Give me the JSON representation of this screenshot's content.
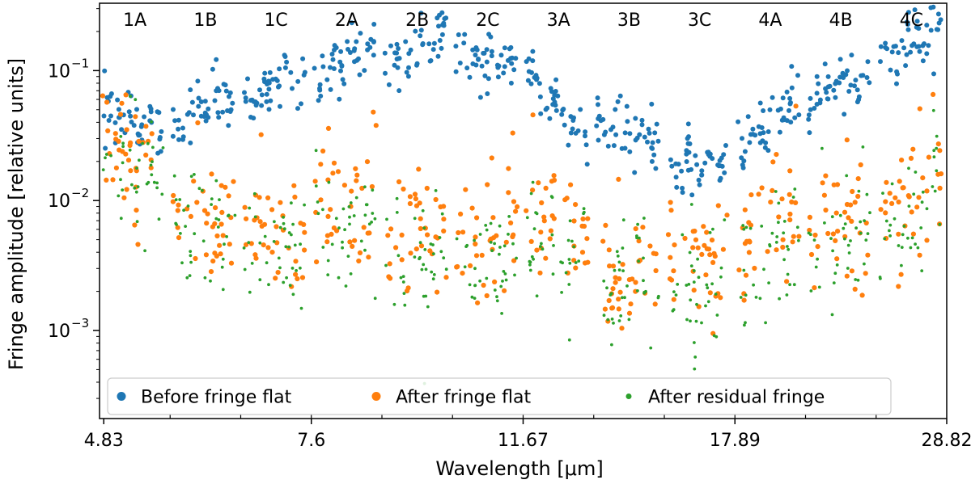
{
  "chart_data": {
    "type": "scatter",
    "title": "",
    "xlabel": "Wavelength [μm]",
    "ylabel": "Fringe amplitude [relative units]",
    "yscale": "log",
    "ylim": [
      0.00021,
      0.33
    ],
    "xlim": [
      0,
      12
    ],
    "x_tick_labels": [
      {
        "label": "4.83",
        "x": 0.06
      },
      {
        "label": "7.6",
        "x": 3.0
      },
      {
        "label": "11.67",
        "x": 6.0
      },
      {
        "label": "17.89",
        "x": 9.0
      },
      {
        "label": "28.82",
        "x": 12.0
      }
    ],
    "y_tick_labels": [
      {
        "label": "10",
        "exponent": "−1",
        "y": 0.1
      },
      {
        "label": "10",
        "exponent": "−2",
        "y": 0.01
      },
      {
        "label": "10",
        "exponent": "−3",
        "y": 0.001
      }
    ],
    "bands": [
      "1A",
      "1B",
      "1C",
      "2A",
      "2B",
      "2C",
      "3A",
      "3B",
      "3C",
      "4A",
      "4B",
      "4C"
    ],
    "grid": false,
    "legend": {
      "position": "bottom",
      "columns": 3
    },
    "series": [
      {
        "name": "Before fringe flat",
        "color": "#1f77b4",
        "marker_size": "large",
        "band_levels": [
          [
            0.045,
            0.035
          ],
          [
            0.035,
            0.075
          ],
          [
            0.058,
            0.1
          ],
          [
            0.085,
            0.165
          ],
          [
            0.11,
            0.185
          ],
          [
            0.13,
            0.11
          ],
          [
            0.1,
            0.03
          ],
          [
            0.04,
            0.03
          ],
          [
            0.018,
            0.02
          ],
          [
            0.025,
            0.065
          ],
          [
            0.055,
            0.095
          ],
          [
            0.1,
            0.21
          ]
        ]
      },
      {
        "name": "After fringe flat",
        "color": "#ff7f0e",
        "marker_size": "large",
        "band_levels": [
          [
            0.03,
            0.02
          ],
          [
            0.009,
            0.006
          ],
          [
            0.007,
            0.005
          ],
          [
            0.011,
            0.009
          ],
          [
            0.005,
            0.007
          ],
          [
            0.004,
            0.007
          ],
          [
            0.008,
            0.006
          ],
          [
            0.003,
            0.003
          ],
          [
            0.003,
            0.003
          ],
          [
            0.004,
            0.008
          ],
          [
            0.005,
            0.007
          ],
          [
            0.006,
            0.02
          ]
        ]
      },
      {
        "name": "After residual fringe",
        "color": "#2ca02c",
        "marker_size": "small",
        "band_levels": [
          [
            0.02,
            0.015
          ],
          [
            0.007,
            0.005
          ],
          [
            0.005,
            0.004
          ],
          [
            0.006,
            0.005
          ],
          [
            0.003,
            0.004
          ],
          [
            0.003,
            0.004
          ],
          [
            0.005,
            0.004
          ],
          [
            0.002,
            0.002
          ],
          [
            0.002,
            0.002
          ],
          [
            0.003,
            0.005
          ],
          [
            0.004,
            0.005
          ],
          [
            0.004,
            0.015
          ]
        ]
      }
    ]
  }
}
